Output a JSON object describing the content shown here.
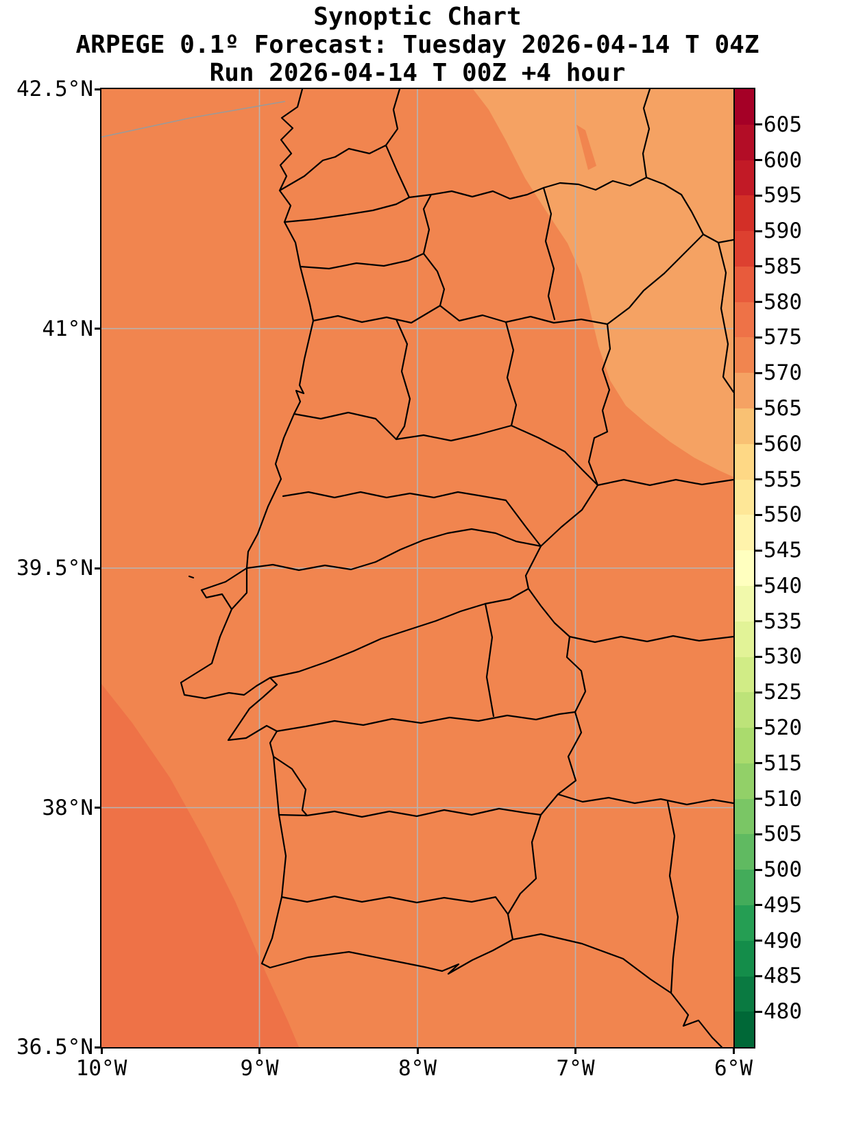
{
  "header": {
    "title": "Synoptic Chart",
    "subtitle": "ARPEGE 0.1º Forecast: Tuesday 2026-04-14 T 04Z",
    "run_line": "Run 2026-04-14 T 00Z +4 hour"
  },
  "colors": {
    "background": "#ffffff",
    "boundary_line": "#000000",
    "grid_line": "#b5b5b5",
    "coast_gray_line": "#9a9a9a",
    "fill_main_570_575": "#f1854f",
    "fill_565_570": "#f5a263",
    "fill_575_580": "#ee7247"
  },
  "chart_data": {
    "type": "heatmap",
    "title": "Synoptic Chart",
    "subtitle": "ARPEGE 0.1º Forecast: Tuesday 2026-04-14 T 04Z",
    "run_line": "Run 2026-04-14 T 00Z +4 hour",
    "region": "Portugal and western Iberia with district/province boundaries",
    "grid": true,
    "x_axis": {
      "range_deg_lon": [
        -10,
        -6
      ],
      "ticks": [
        {
          "label": "10°W",
          "lon": -10
        },
        {
          "label": "9°W",
          "lon": -9
        },
        {
          "label": "8°W",
          "lon": -8
        },
        {
          "label": "7°W",
          "lon": -7
        },
        {
          "label": "6°W",
          "lon": -6
        }
      ]
    },
    "y_axis": {
      "range_deg_lat": [
        36.5,
        42.5
      ],
      "ticks": [
        {
          "label": "42.5°N",
          "lat": 42.5
        },
        {
          "label": "41°N",
          "lat": 41
        },
        {
          "label": "39.5°N",
          "lat": 39.5
        },
        {
          "label": "38°N",
          "lat": 38
        },
        {
          "label": "36.5°N",
          "lat": 36.5
        }
      ]
    },
    "colorbar": {
      "orientation": "vertical-right",
      "vmin": 475,
      "vmax": 610,
      "tick_values": [
        605,
        600,
        595,
        590,
        585,
        580,
        575,
        570,
        565,
        560,
        555,
        550,
        545,
        540,
        535,
        530,
        525,
        520,
        515,
        510,
        505,
        500,
        495,
        490,
        485,
        480
      ],
      "segment_colors_bottom_to_top": [
        "#006837",
        "#0a7a41",
        "#148d4a",
        "#259e53",
        "#43ac5a",
        "#60ba61",
        "#7ac665",
        "#92d068",
        "#aadb6d",
        "#bde379",
        "#d1ec86",
        "#e2f397",
        "#f1f9ab",
        "#ffffbf",
        "#fff3ab",
        "#fee797",
        "#fed885",
        "#f9c173",
        "#f5a263",
        "#f1854f",
        "#ee7247",
        "#e85b3c",
        "#dd4030",
        "#d32f27",
        "#c21a26",
        "#b30d26",
        "#a50026"
      ]
    },
    "field": {
      "quantity": "geopotential height filled contours, 5-unit steps",
      "dominant_value_band": [
        570,
        575
      ],
      "regions": [
        {
          "area": "most of the domain (Portugal, ocean, central strip)",
          "value_band": [
            570,
            575
          ]
        },
        {
          "area": "northeast corner (NE Spain part of domain)",
          "value_band": [
            565,
            570
          ]
        },
        {
          "area": "small streak inside the northeast light band",
          "value_band": [
            570,
            575
          ]
        },
        {
          "area": "southwest ocean corner",
          "value_band": [
            575,
            580
          ]
        }
      ]
    }
  }
}
